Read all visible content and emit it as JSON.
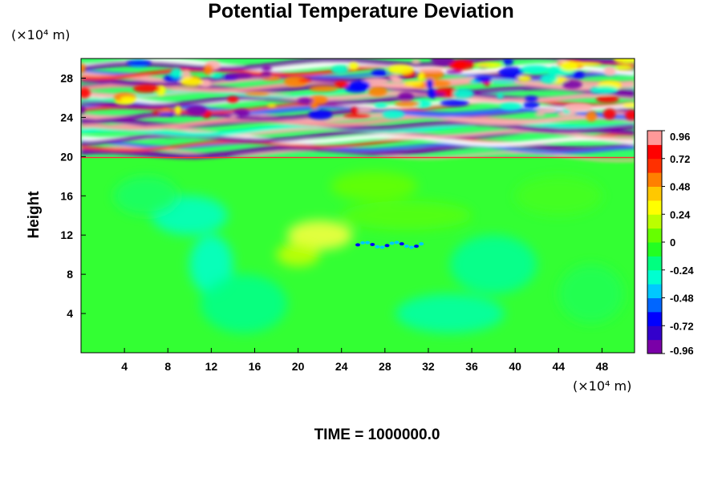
{
  "chart_data": {
    "type": "heatmap",
    "title": "Potential Temperature Deviation",
    "ylabel": "Height",
    "xlabel": "",
    "x_unit": "(×10⁴ m)",
    "y_unit": "(×10⁴ m)",
    "footer": "TIME = 1000000.0",
    "xlim": [
      0,
      51
    ],
    "ylim": [
      0,
      30
    ],
    "x_ticks": [
      "4",
      "8",
      "12",
      "16",
      "20",
      "24",
      "28",
      "32",
      "36",
      "40",
      "44",
      "48"
    ],
    "y_ticks": [
      "4",
      "8",
      "12",
      "16",
      "20",
      "24",
      "28"
    ],
    "x_tick_values": [
      4,
      8,
      12,
      16,
      20,
      24,
      28,
      32,
      36,
      40,
      44,
      48
    ],
    "y_tick_values": [
      4,
      8,
      12,
      16,
      20,
      24,
      28
    ],
    "colorbar": {
      "range": [
        -0.96,
        0.96
      ],
      "tick_labels": [
        "0.96",
        "0.72",
        "0.48",
        "0.24",
        "0",
        "-0.24",
        "-0.48",
        "-0.72",
        "-0.96"
      ],
      "tick_values": [
        0.96,
        0.72,
        0.48,
        0.24,
        0,
        -0.24,
        -0.48,
        -0.72,
        -0.96
      ],
      "colors": [
        "#7a00a8",
        "#3300cc",
        "#0000ff",
        "#0066ff",
        "#00c8ff",
        "#00ffd0",
        "#00ff80",
        "#22ff22",
        "#66ff00",
        "#bbff00",
        "#ffff00",
        "#ffc800",
        "#ff8000",
        "#ff3000",
        "#ff0000",
        "#ff9999"
      ]
    },
    "field_summary": {
      "lower_region": "values near 0 (green) from 0 to ~20 ×10⁴ m height",
      "upper_region": "strong alternating bands from -0.96 (purple) to 0.96 (pink) between ~20 and 30 ×10⁴ m",
      "notable": "slight positive anomaly (yellow) near x≈22, y≈12; negative streak (blue) near x≈26–30, y≈11"
    }
  }
}
